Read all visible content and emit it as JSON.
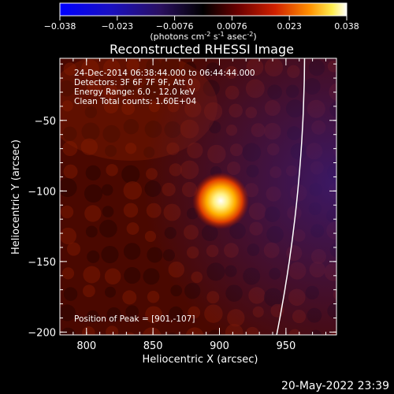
{
  "chart_data": {
    "type": "heatmap",
    "title": "Reconstructed RHESSI Image",
    "colorbar": {
      "range": [
        -0.038,
        0.038
      ],
      "ticks": [
        "-0.038",
        "-0.023",
        "-0.0076",
        "0.0076",
        "0.023",
        "0.038"
      ],
      "unit_main": "(photons cm",
      "unit_exp1": "-2",
      "unit_mid": " s",
      "unit_exp2": "-1",
      "unit_end": " asec",
      "unit_exp3": "-2",
      "unit_close": ")"
    },
    "xlabel": "Heliocentric X (arcsec)",
    "ylabel": "Heliocentric Y (arcsec)",
    "xlim": [
      780,
      988
    ],
    "ylim": [
      -202,
      -6
    ],
    "x_ticks": [
      {
        "value": 800,
        "label": "800"
      },
      {
        "value": 850,
        "label": "850"
      },
      {
        "value": 900,
        "label": "900"
      },
      {
        "value": 950,
        "label": "950"
      }
    ],
    "y_ticks": [
      {
        "value": -50,
        "label": "−50"
      },
      {
        "value": -100,
        "label": "−100"
      },
      {
        "value": -150,
        "label": "−150"
      },
      {
        "value": -200,
        "label": "−200"
      }
    ],
    "info": [
      "24-Dec-2014 06:38:44.000 to 06:44:44.000",
      "Detectors: 3F 6F 7F 9F, Att 0",
      "Energy Range: 6.0 - 12.0 keV",
      "Clean     Total counts: 1.60E+04"
    ],
    "peak_label": "Position of Peak = [901,-107]",
    "peak": {
      "x": 901,
      "y": -107,
      "value": 0.038
    },
    "limb_color": "#ffffff"
  },
  "footer": {
    "timestamp": "20-May-2022 23:39"
  }
}
